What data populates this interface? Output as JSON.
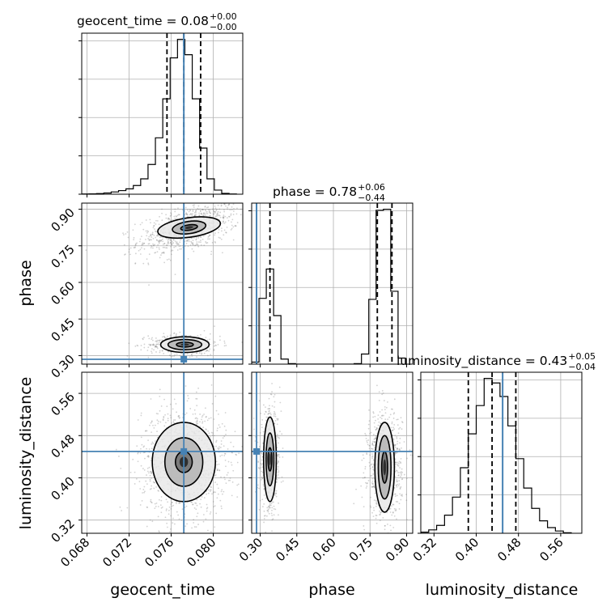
{
  "chart_data": {
    "type": "corner",
    "parameters": [
      "geocent_time",
      "phase",
      "luminosity_distance"
    ],
    "axis_labels": [
      "geocent_time",
      "phase",
      "luminosity_distance"
    ],
    "truths": {
      "geocent_time": 0.0772,
      "phase": 0.285,
      "luminosity_distance": 0.45
    },
    "ranges": {
      "geocent_time": [
        0.0675,
        0.0828
      ],
      "phase": [
        0.265,
        0.925
      ],
      "luminosity_distance": [
        0.295,
        0.6
      ]
    },
    "ticks": {
      "geocent_time": [
        0.068,
        0.072,
        0.076,
        0.08
      ],
      "phase": [
        0.3,
        0.45,
        0.6,
        0.75,
        0.9
      ],
      "luminosity_distance": [
        0.32,
        0.4,
        0.48,
        0.56
      ]
    },
    "tick_labels": {
      "geocent_time": [
        "0.068",
        "0.072",
        "0.076",
        "0.080"
      ],
      "phase": [
        "0.30",
        "0.45",
        "0.60",
        "0.75",
        "0.90"
      ],
      "luminosity_distance": [
        "0.32",
        "0.40",
        "0.48",
        "0.56"
      ]
    },
    "diag_titles": [
      {
        "param": "geocent_time",
        "base": "geocent_time = 0.08",
        "sup": "+0.00",
        "sub": "−0.00"
      },
      {
        "param": "phase",
        "base": "phase = 0.78",
        "sup": "+0.06",
        "sub": "−0.44"
      },
      {
        "param": "luminosity_distance",
        "base": "luminosity_distance = 0.43",
        "sup": "+0.05",
        "sub": "−0.04"
      }
    ],
    "quantiles": {
      "geocent_time": [
        0.0756,
        0.0772,
        0.0788
      ],
      "phase": [
        0.34,
        0.78,
        0.84
      ],
      "luminosity_distance": [
        0.385,
        0.43,
        0.475
      ]
    },
    "histograms": {
      "geocent_time": {
        "edges": [
          0.0675,
          0.0682,
          0.0689,
          0.0696,
          0.0703,
          0.071,
          0.0717,
          0.0724,
          0.0731,
          0.0738,
          0.0745,
          0.0752,
          0.0759,
          0.0766,
          0.0773,
          0.078,
          0.0787,
          0.0794,
          0.0801,
          0.0808,
          0.0815,
          0.0822
        ],
        "counts": [
          0.2,
          0.3,
          0.6,
          1.2,
          2.2,
          3.5,
          5.2,
          8.5,
          15,
          29,
          55,
          93,
          133,
          151,
          136,
          93,
          45,
          15,
          4,
          0.8,
          0.2
        ]
      },
      "phase": {
        "edges": [
          0.265,
          0.295,
          0.325,
          0.355,
          0.385,
          0.415,
          0.445,
          0.475,
          0.505,
          0.535,
          0.565,
          0.595,
          0.625,
          0.655,
          0.685,
          0.715,
          0.745,
          0.775,
          0.805,
          0.835,
          0.865,
          0.895
        ],
        "counts": [
          2,
          65,
          94,
          48,
          5,
          0.5,
          0,
          0,
          0,
          0,
          0,
          0,
          0,
          0,
          0.5,
          10,
          64,
          152,
          153,
          72,
          6
        ]
      },
      "luminosity_distance": {
        "edges": [
          0.295,
          0.31,
          0.325,
          0.34,
          0.355,
          0.37,
          0.385,
          0.4,
          0.415,
          0.43,
          0.445,
          0.46,
          0.475,
          0.49,
          0.505,
          0.52,
          0.535,
          0.55,
          0.565,
          0.58
        ],
        "counts": [
          1,
          3,
          7,
          16,
          32,
          58,
          88,
          113,
          137,
          133,
          121,
          95,
          66,
          40,
          22,
          11,
          5,
          2,
          0.5
        ]
      }
    },
    "scatter_clusters": [
      {
        "x": "geocent_time",
        "y": "phase",
        "cx": 0.0776,
        "cy": 0.82,
        "sx": 0.0024,
        "sy": 0.045,
        "n": 850,
        "slope": 0.6
      },
      {
        "x": "geocent_time",
        "y": "phase",
        "cx": 0.0773,
        "cy": 0.345,
        "sx": 0.0017,
        "sy": 0.022,
        "n": 450,
        "slope": 0
      },
      {
        "x": "geocent_time",
        "y": "luminosity_distance",
        "cx": 0.0772,
        "cy": 0.43,
        "sx": 0.002,
        "sy": 0.05,
        "n": 1300,
        "slope": 0
      },
      {
        "x": "phase",
        "y": "luminosity_distance",
        "cx": 0.34,
        "cy": 0.43,
        "sx": 0.022,
        "sy": 0.05,
        "n": 550,
        "slope": 0
      },
      {
        "x": "phase",
        "y": "luminosity_distance",
        "cx": 0.81,
        "cy": 0.425,
        "sx": 0.035,
        "sy": 0.05,
        "n": 800,
        "slope": 0
      }
    ],
    "contour_sets": [
      {
        "x": "geocent_time",
        "y": "phase",
        "cx": 0.0777,
        "cy": 0.825,
        "rx": [
          0.0008,
          0.0016,
          0.003
        ],
        "ry": [
          0.011,
          0.025,
          0.04
        ],
        "slope": 0.45
      },
      {
        "x": "geocent_time",
        "y": "phase",
        "cx": 0.0773,
        "cy": 0.345,
        "rx": [
          0.0008,
          0.0016,
          0.0023
        ],
        "ry": [
          0.01,
          0.021,
          0.032
        ],
        "slope": 0
      },
      {
        "x": "geocent_time",
        "y": "luminosity_distance",
        "cx": 0.0772,
        "cy": 0.43,
        "rx": [
          0.0008,
          0.0018,
          0.003
        ],
        "ry": [
          0.02,
          0.046,
          0.075
        ],
        "slope": 0
      },
      {
        "x": "phase",
        "y": "luminosity_distance",
        "cx": 0.34,
        "cy": 0.435,
        "rx": [
          0.008,
          0.016,
          0.026
        ],
        "ry": [
          0.022,
          0.05,
          0.08
        ],
        "slope": 0
      },
      {
        "x": "phase",
        "y": "luminosity_distance",
        "cx": 0.81,
        "cy": 0.42,
        "rx": [
          0.012,
          0.026,
          0.04
        ],
        "ry": [
          0.03,
          0.06,
          0.085
        ],
        "slope": 0
      }
    ],
    "colors": {
      "truth": "#4682b4",
      "contour": "#000000",
      "grid": "#b0b0b0",
      "scatter": "#7f7f7f"
    },
    "grid": true
  }
}
